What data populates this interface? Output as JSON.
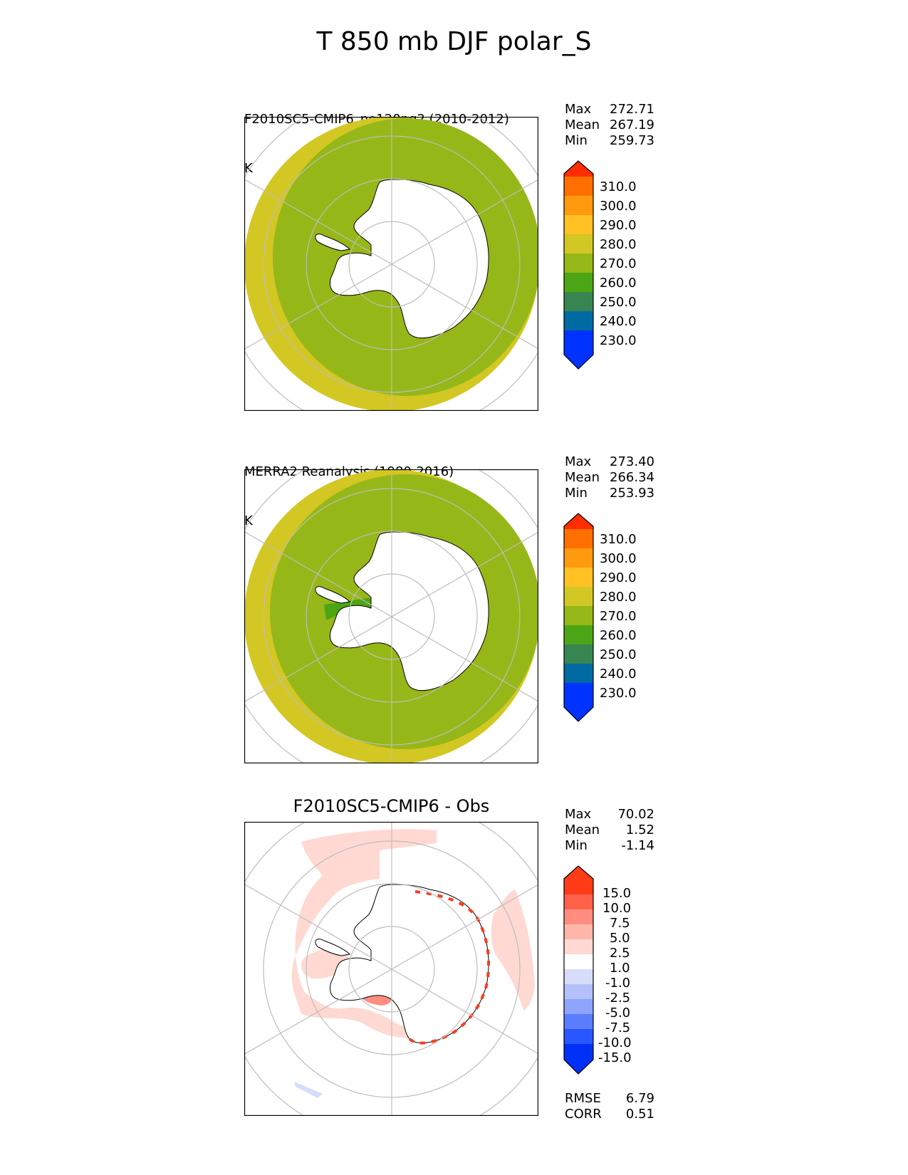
{
  "figure_title": "T 850 mb DJF polar_S",
  "colors": {
    "ice": "#ffffff",
    "coast": "#000000",
    "grid": "#bdbdbd",
    "cbar_main": [
      "#0033ff",
      "#006aa3",
      "#378652",
      "#4ca514",
      "#96b718",
      "#d3c723",
      "#ffc123",
      "#ff9a0e",
      "#ff7000",
      "#ff2d00"
    ],
    "cbar_diff": [
      "#0030f5",
      "#2856ff",
      "#5a7eff",
      "#8ea4ff",
      "#b4c0fa",
      "#d6dcfa",
      "#ffffff",
      "#ffd9d2",
      "#ffb6ab",
      "#ff8d80",
      "#ff6248",
      "#ff3b18"
    ]
  },
  "chart_data": [
    {
      "type": "polar-map",
      "title": "F2010SC5-CMIP6_ne120pg2 (2010-2012)",
      "units": "K",
      "stats": [
        {
          "label": "Max",
          "value": "272.71"
        },
        {
          "label": "Mean",
          "value": "267.19"
        },
        {
          "label": "Min",
          "value": "259.73"
        }
      ],
      "colorbar": {
        "levels": [
          "230.0",
          "240.0",
          "250.0",
          "260.0",
          "270.0",
          "280.0",
          "290.0",
          "300.0",
          "310.0"
        ]
      },
      "regions": {
        "outer_band": "270-280",
        "main_band": "260-270"
      }
    },
    {
      "type": "polar-map",
      "title": "MERRA2 Reanalysis (1980-2016)",
      "units": "K",
      "stats": [
        {
          "label": "Max",
          "value": "273.40"
        },
        {
          "label": "Mean",
          "value": "266.34"
        },
        {
          "label": "Min",
          "value": "253.93"
        }
      ],
      "colorbar": {
        "levels": [
          "230.0",
          "240.0",
          "250.0",
          "260.0",
          "270.0",
          "280.0",
          "290.0",
          "300.0",
          "310.0"
        ]
      },
      "regions": {
        "outer_band": "270-280",
        "main_band": "260-270",
        "peninsula_band": "250-260"
      }
    },
    {
      "type": "polar-map-difference",
      "title": "F2010SC5-CMIP6 - Obs",
      "units": "",
      "stats": [
        {
          "label": "Max",
          "value": "70.02"
        },
        {
          "label": "Mean",
          "value": "1.52"
        },
        {
          "label": "Min",
          "value": "-1.14"
        }
      ],
      "colorbar": {
        "levels": [
          "-15.0",
          "-10.0",
          "-7.5",
          "-5.0",
          "-2.5",
          "-1.0",
          "1.0",
          "2.5",
          "5.0",
          "7.5",
          "10.0",
          "15.0"
        ]
      },
      "metrics": [
        {
          "label": "RMSE",
          "value": "6.79"
        },
        {
          "label": "CORR",
          "value": "0.51"
        }
      ]
    }
  ]
}
